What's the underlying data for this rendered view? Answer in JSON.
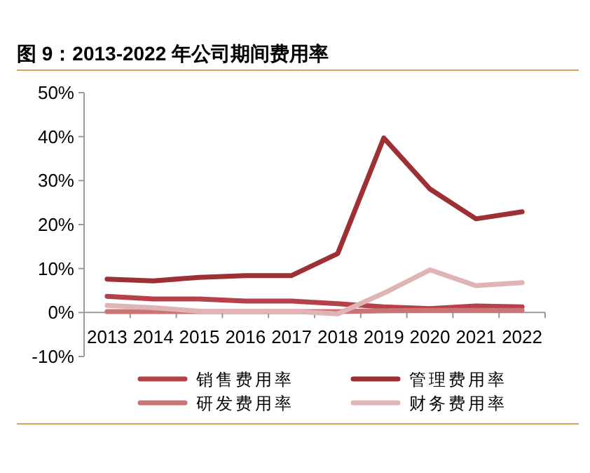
{
  "chart_data": {
    "type": "line",
    "title": "图 9：2013-2022 年公司期间费用率",
    "categories": [
      "2013",
      "2014",
      "2015",
      "2016",
      "2017",
      "2018",
      "2019",
      "2020",
      "2021",
      "2022"
    ],
    "series": [
      {
        "name": "销售费用率",
        "color": "#b5424a",
        "values": [
          3.7,
          3.1,
          3.1,
          2.6,
          2.6,
          2.0,
          1.3,
          0.9,
          1.5,
          1.3
        ]
      },
      {
        "name": "管理费用率",
        "color": "#9c3034",
        "values": [
          7.6,
          7.2,
          8.0,
          8.4,
          8.4,
          13.4,
          39.7,
          28.1,
          21.3,
          22.9
        ]
      },
      {
        "name": "研发费用率",
        "color": "#c97575",
        "values": [
          0.2,
          0.2,
          0.2,
          0.2,
          0.2,
          0.2,
          0.4,
          0.5,
          0.5,
          0.5
        ]
      },
      {
        "name": "财务费用率",
        "color": "#e0b4b4",
        "values": [
          1.6,
          1.1,
          0.3,
          0.3,
          0.3,
          -0.3,
          4.4,
          9.7,
          6.1,
          6.8
        ]
      }
    ],
    "ylim": [
      -10,
      50
    ],
    "yticks": [
      {
        "value": -10,
        "label": "-10%"
      },
      {
        "value": 0,
        "label": "0%"
      },
      {
        "value": 10,
        "label": "10%"
      },
      {
        "value": 20,
        "label": "20%"
      },
      {
        "value": 30,
        "label": "30%"
      },
      {
        "value": 40,
        "label": "40%"
      },
      {
        "value": 50,
        "label": "50%"
      }
    ],
    "grid": false,
    "legend": "bottom",
    "marker": "none",
    "line_style": "solid"
  }
}
